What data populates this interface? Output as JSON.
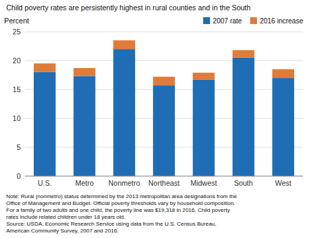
{
  "chart_data": {
    "type": "bar",
    "stacked": true,
    "title": "Child poverty rates are persistently highest in rural counties and in the South",
    "ylabel": "Percent",
    "categories": [
      "U.S.",
      "Metro",
      "Nonmetro",
      "Northeast",
      "Midwest",
      "South",
      "West"
    ],
    "series": [
      {
        "name": "2007 rate",
        "color": "#1F6DB5",
        "values": [
          18.0,
          17.3,
          22.0,
          15.7,
          16.7,
          20.5,
          17.0
        ]
      },
      {
        "name": "2016 increase",
        "color": "#E07B39",
        "values": [
          1.5,
          1.4,
          1.5,
          1.5,
          1.2,
          1.3,
          1.5
        ]
      }
    ],
    "ylim": [
      0,
      25
    ],
    "yticks": [
      0,
      5,
      10,
      15,
      20,
      25
    ],
    "grid": true,
    "legend": "upper right",
    "annotations": [
      "Note: Rural (nonmetro) status determined by the 2013 metropolitan area designations from the",
      "Office of Management and Budget. Official poverty thresholds vary by household composition.",
      "For a family of two adults and one child, the poverty line was $19,318 in 2016. Child poverty",
      "rates include related children under 18 years old.",
      "Source: USDA, Economic Research Service using data from the U.S. Census Bureau,",
      "American Community Survey, 2007 and 2016."
    ]
  }
}
